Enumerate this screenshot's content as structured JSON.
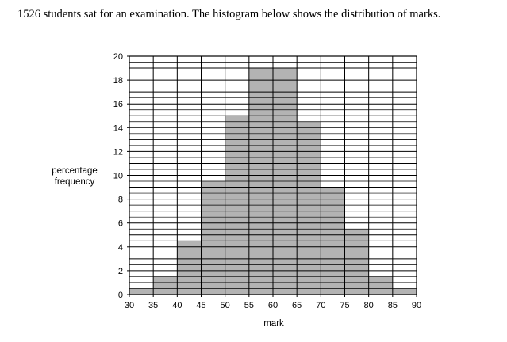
{
  "question": "1526 students sat for an examination. The histogram below shows the distribution of marks.",
  "chart_data": {
    "type": "bar",
    "title": "",
    "xlabel": "mark",
    "ylabel_lines": [
      "percentage",
      "frequency"
    ],
    "bin_edges": [
      30,
      35,
      40,
      45,
      50,
      55,
      60,
      65,
      70,
      75,
      80,
      85,
      90
    ],
    "values": [
      0.5,
      1.5,
      4.5,
      9.5,
      15,
      19,
      19,
      14.5,
      9,
      5.5,
      1.5,
      0.5
    ],
    "xlim": [
      30,
      90
    ],
    "ylim": [
      0,
      20
    ],
    "x_ticks": [
      "30",
      "35",
      "40",
      "45",
      "50",
      "55",
      "60",
      "65",
      "70",
      "75",
      "80",
      "85",
      "90"
    ],
    "y_ticks": [
      "0",
      "2",
      "4",
      "6",
      "8",
      "10",
      "12",
      "14",
      "16",
      "18",
      "20"
    ],
    "grid": true,
    "bar_color": "#b3b3b3"
  }
}
